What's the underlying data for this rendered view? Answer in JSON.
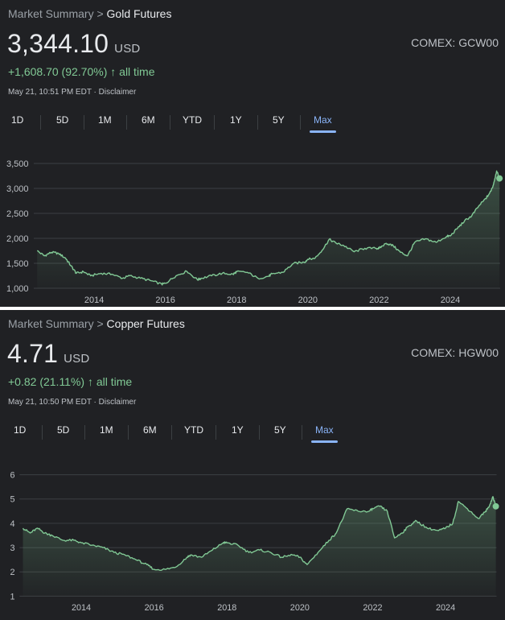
{
  "panels": [
    {
      "breadcrumb": {
        "root": "Market Summary",
        "separator": ">",
        "current": "Gold Futures"
      },
      "price": "3,344.10",
      "currency": "USD",
      "change": "+1,608.70 (92.70%)",
      "change_arrow": "↑",
      "change_period": "all time",
      "timestamp": "May 21, 10:51 PM EDT · Disclaimer",
      "exchange": "COMEX: GCW00",
      "ranges": [
        "1D",
        "5D",
        "1M",
        "6M",
        "YTD",
        "1Y",
        "5Y",
        "Max"
      ],
      "selected_range": "Max",
      "colors": {
        "positive": "#81c995",
        "accent": "#8ab4f8"
      }
    },
    {
      "breadcrumb": {
        "root": "Market Summary",
        "separator": ">",
        "current": "Copper Futures"
      },
      "price": "4.71",
      "currency": "USD",
      "change": "+0.82 (21.11%)",
      "change_arrow": "↑",
      "change_period": "all time",
      "timestamp": "May 21, 10:50 PM EDT · Disclaimer",
      "exchange": "COMEX: HGW00",
      "ranges": [
        "1D",
        "5D",
        "1M",
        "6M",
        "YTD",
        "1Y",
        "5Y",
        "Max"
      ],
      "selected_range": "Max",
      "colors": {
        "positive": "#81c995",
        "accent": "#8ab4f8"
      }
    }
  ],
  "chart_data": [
    {
      "type": "area",
      "title": "",
      "xlabel": "",
      "ylabel": "",
      "xlim": [
        2012.35,
        2025.4
      ],
      "ylim": [
        1000,
        3500
      ],
      "y_ticks": [
        1000,
        1500,
        2000,
        2500,
        3000,
        3500
      ],
      "y_tick_labels": [
        "1,000",
        "1,500",
        "2,000",
        "2,500",
        "3,000",
        "3,500"
      ],
      "x_ticks": [
        2014,
        2016,
        2018,
        2020,
        2022,
        2024
      ],
      "x_tick_labels": [
        "2014",
        "2016",
        "2018",
        "2020",
        "2022",
        "2024"
      ],
      "grid": "horizontal",
      "line_color": "#81c995",
      "series": [
        {
          "x": [
            2012.4,
            2012.6,
            2012.8,
            2013.0,
            2013.2,
            2013.35,
            2013.5,
            2013.7,
            2013.9,
            2014.2,
            2014.5,
            2014.8,
            2015.0,
            2015.3,
            2015.6,
            2015.9,
            2016.0,
            2016.3,
            2016.6,
            2016.9,
            2017.0,
            2017.3,
            2017.6,
            2017.9,
            2018.0,
            2018.3,
            2018.6,
            2018.9,
            2019.0,
            2019.3,
            2019.6,
            2019.9,
            2020.0,
            2020.2,
            2020.4,
            2020.6,
            2020.8,
            2021.0,
            2021.3,
            2021.6,
            2021.9,
            2022.0,
            2022.2,
            2022.4,
            2022.6,
            2022.8,
            2023.0,
            2023.3,
            2023.6,
            2023.9,
            2024.0,
            2024.2,
            2024.4,
            2024.6,
            2024.8,
            2025.0,
            2025.1,
            2025.2,
            2025.3,
            2025.38
          ],
          "y": [
            1750,
            1650,
            1720,
            1700,
            1600,
            1450,
            1300,
            1330,
            1250,
            1300,
            1280,
            1200,
            1250,
            1200,
            1150,
            1080,
            1100,
            1250,
            1340,
            1170,
            1200,
            1250,
            1300,
            1280,
            1330,
            1320,
            1200,
            1240,
            1290,
            1320,
            1500,
            1520,
            1580,
            1600,
            1760,
            1980,
            1900,
            1860,
            1730,
            1800,
            1800,
            1800,
            1900,
            1850,
            1720,
            1650,
            1920,
            1990,
            1920,
            2040,
            2050,
            2200,
            2350,
            2450,
            2650,
            2800,
            2900,
            3050,
            3350,
            3200
          ]
        }
      ]
    },
    {
      "type": "area",
      "title": "",
      "xlabel": "",
      "ylabel": "",
      "xlim": [
        2012.35,
        2025.4
      ],
      "ylim": [
        1,
        6
      ],
      "y_ticks": [
        1,
        2,
        3,
        4,
        5,
        6
      ],
      "y_tick_labels": [
        "1",
        "2",
        "3",
        "4",
        "5",
        "6"
      ],
      "x_ticks": [
        2014,
        2016,
        2018,
        2020,
        2022,
        2024
      ],
      "x_tick_labels": [
        "2014",
        "2016",
        "2018",
        "2020",
        "2022",
        "2024"
      ],
      "grid": "horizontal",
      "line_color": "#81c995",
      "series": [
        {
          "x": [
            2012.4,
            2012.6,
            2012.8,
            2013.0,
            2013.2,
            2013.5,
            2013.8,
            2014.0,
            2014.3,
            2014.6,
            2014.9,
            2015.2,
            2015.5,
            2015.8,
            2016.0,
            2016.3,
            2016.6,
            2016.9,
            2017.0,
            2017.3,
            2017.6,
            2017.9,
            2018.0,
            2018.3,
            2018.6,
            2018.9,
            2019.2,
            2019.5,
            2019.8,
            2020.0,
            2020.2,
            2020.5,
            2020.8,
            2021.0,
            2021.3,
            2021.6,
            2021.9,
            2022.0,
            2022.2,
            2022.4,
            2022.6,
            2022.8,
            2023.0,
            2023.2,
            2023.5,
            2023.8,
            2024.0,
            2024.2,
            2024.35,
            2024.6,
            2024.9,
            2025.1,
            2025.2,
            2025.3,
            2025.38
          ],
          "y": [
            3.8,
            3.6,
            3.8,
            3.6,
            3.5,
            3.3,
            3.3,
            3.2,
            3.1,
            3.0,
            2.8,
            2.7,
            2.5,
            2.3,
            2.1,
            2.1,
            2.2,
            2.6,
            2.7,
            2.6,
            2.9,
            3.2,
            3.2,
            3.1,
            2.8,
            2.9,
            2.8,
            2.6,
            2.7,
            2.6,
            2.3,
            2.8,
            3.3,
            3.6,
            4.6,
            4.5,
            4.5,
            4.6,
            4.7,
            4.5,
            3.4,
            3.6,
            3.9,
            4.1,
            3.8,
            3.7,
            3.8,
            4.0,
            4.9,
            4.6,
            4.2,
            4.5,
            4.7,
            5.1,
            4.7
          ]
        }
      ]
    }
  ]
}
